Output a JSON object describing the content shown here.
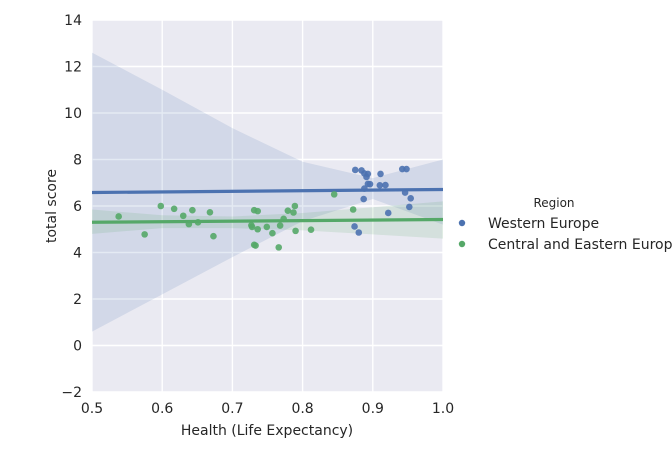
{
  "chart_data": {
    "type": "scatter",
    "title": "",
    "xlabel": "Health (Life Expectancy)",
    "ylabel": "total score",
    "xlim": [
      0.5,
      1.0
    ],
    "ylim": [
      -2,
      14
    ],
    "x_ticks": [
      0.5,
      0.6,
      0.7,
      0.8,
      0.9,
      1.0
    ],
    "y_ticks": [
      -2,
      0,
      2,
      4,
      6,
      8,
      10,
      12,
      14
    ],
    "x_tick_labels": [
      "0.5",
      "0.6",
      "0.7",
      "0.8",
      "0.9",
      "1.0"
    ],
    "y_tick_labels": [
      "−2",
      "0",
      "2",
      "4",
      "6",
      "8",
      "10",
      "12",
      "14"
    ],
    "grid": true,
    "background": "#eaeaf2",
    "legend": {
      "title": "Region",
      "placement": "right"
    },
    "series": [
      {
        "name": "Western Europe",
        "color": "#4c72b0",
        "points": [
          [
            0.875,
            7.55
          ],
          [
            0.884,
            7.53
          ],
          [
            0.888,
            7.4
          ],
          [
            0.893,
            7.38
          ],
          [
            0.891,
            7.25
          ],
          [
            0.911,
            7.38
          ],
          [
            0.942,
            7.59
          ],
          [
            0.948,
            7.59
          ],
          [
            0.893,
            6.95
          ],
          [
            0.896,
            6.94
          ],
          [
            0.91,
            6.89
          ],
          [
            0.918,
            6.9
          ],
          [
            0.888,
            6.75
          ],
          [
            0.887,
            6.3
          ],
          [
            0.946,
            6.58
          ],
          [
            0.954,
            6.33
          ],
          [
            0.952,
            5.96
          ],
          [
            0.922,
            5.7
          ],
          [
            0.874,
            5.12
          ],
          [
            0.88,
            4.86
          ]
        ],
        "fit": {
          "y_at_xmin": 6.58,
          "y_at_xmax": 6.71
        },
        "ci": {
          "x": [
            0.5,
            0.6,
            0.7,
            0.8,
            0.9,
            1.0
          ],
          "lower": [
            0.6,
            2.2,
            3.8,
            5.35,
            6.3,
            5.2
          ],
          "upper": [
            12.6,
            11.0,
            9.35,
            7.9,
            7.2,
            8.0
          ]
        }
      },
      {
        "name": "Central and Eastern Europe",
        "color": "#55a868",
        "points": [
          [
            0.538,
            5.55
          ],
          [
            0.575,
            4.78
          ],
          [
            0.598,
            6.0
          ],
          [
            0.617,
            5.88
          ],
          [
            0.63,
            5.58
          ],
          [
            0.638,
            5.22
          ],
          [
            0.643,
            5.82
          ],
          [
            0.651,
            5.3
          ],
          [
            0.668,
            5.73
          ],
          [
            0.673,
            4.7
          ],
          [
            0.727,
            5.17
          ],
          [
            0.728,
            5.1
          ],
          [
            0.731,
            5.82
          ],
          [
            0.736,
            5.78
          ],
          [
            0.736,
            5.0
          ],
          [
            0.731,
            4.33
          ],
          [
            0.733,
            4.3
          ],
          [
            0.749,
            5.1
          ],
          [
            0.757,
            4.83
          ],
          [
            0.766,
            4.22
          ],
          [
            0.768,
            5.16
          ],
          [
            0.773,
            5.45
          ],
          [
            0.779,
            5.8
          ],
          [
            0.787,
            5.72
          ],
          [
            0.789,
            6.0
          ],
          [
            0.79,
            4.93
          ],
          [
            0.812,
            4.98
          ],
          [
            0.845,
            6.5
          ],
          [
            0.872,
            5.85
          ]
        ],
        "fit": {
          "y_at_xmin": 5.3,
          "y_at_xmax": 5.42
        },
        "ci": {
          "x": [
            0.5,
            0.6,
            0.7,
            0.8,
            0.9,
            1.0
          ],
          "lower": [
            4.8,
            5.05,
            5.05,
            4.95,
            4.78,
            4.6
          ],
          "upper": [
            5.85,
            5.6,
            5.55,
            5.7,
            5.95,
            6.2
          ]
        }
      }
    ]
  }
}
